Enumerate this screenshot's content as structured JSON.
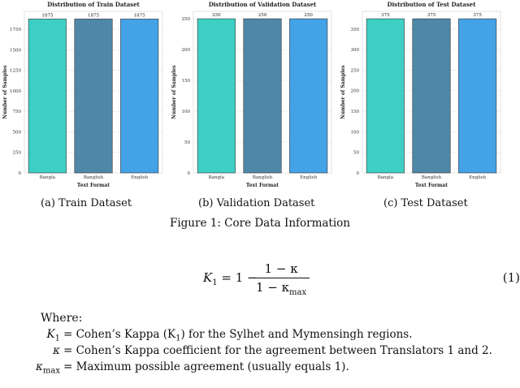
{
  "chart_data": [
    {
      "type": "bar",
      "title": "Distribution of Train Dataset",
      "xlabel": "Text Format",
      "ylabel": "Number of Samples",
      "categories": [
        "Bangla",
        "Banglish",
        "English"
      ],
      "values": [
        1875,
        1875,
        1875
      ],
      "data_labels": [
        "1875",
        "1875",
        "1875"
      ],
      "ylim": [
        0,
        1968
      ],
      "yticks": [
        0,
        250,
        500,
        750,
        1000,
        1250,
        1500,
        1750
      ],
      "grid": true,
      "colors": [
        "#3ecfc4",
        "#4f87a9",
        "#44a2e6"
      ]
    },
    {
      "type": "bar",
      "title": "Distribution of Validation Dataset",
      "xlabel": "Text Format",
      "ylabel": "Number of Samples",
      "categories": [
        "Bangla",
        "Banglish",
        "English"
      ],
      "values": [
        250,
        250,
        250
      ],
      "data_labels": [
        "250",
        "250",
        "250"
      ],
      "ylim": [
        0,
        262
      ],
      "yticks": [
        0,
        50,
        100,
        150,
        200,
        250
      ],
      "grid": true,
      "colors": [
        "#3ecfc4",
        "#4f87a9",
        "#44a2e6"
      ]
    },
    {
      "type": "bar",
      "title": "Distribution of Test Dataset",
      "xlabel": "Text Format",
      "ylabel": "Number of Samples",
      "categories": [
        "Bangla",
        "Banglish",
        "English"
      ],
      "values": [
        375,
        375,
        375
      ],
      "data_labels": [
        "375",
        "375",
        "375"
      ],
      "ylim": [
        0,
        393
      ],
      "yticks": [
        0,
        50,
        100,
        150,
        200,
        250,
        300,
        350
      ],
      "grid": true,
      "colors": [
        "#3ecfc4",
        "#4f87a9",
        "#44a2e6"
      ]
    }
  ],
  "subcaptions": [
    "(a) Train Dataset",
    "(b) Validation Dataset",
    "(c) Test Dataset"
  ],
  "figure_caption": "Figure 1: Core Data Information",
  "equation": {
    "lhs": "K",
    "lhs_sub": "1",
    "equals_one_minus": "= 1 −",
    "numerator": "1 − κ",
    "denominator_pre": "1 − κ",
    "denominator_sub": "max",
    "number": "(1)"
  },
  "where_label": "Where:",
  "definitions": [
    {
      "symbol": "K",
      "symbol_sub": "1",
      "text": "= Cohen’s Kappa (K",
      "text_sub": "1",
      "text_post": ") for the Sylhet and Mymensingh regions."
    },
    {
      "symbol": "κ",
      "symbol_sub": "",
      "text": "= Cohen’s Kappa coefficient for the agreement between Translators 1 and 2.",
      "text_sub": "",
      "text_post": ""
    },
    {
      "symbol": "κ",
      "symbol_sub": "max",
      "text": "= Maximum possible agreement (usually equals 1).",
      "text_sub": "",
      "text_post": ""
    }
  ]
}
